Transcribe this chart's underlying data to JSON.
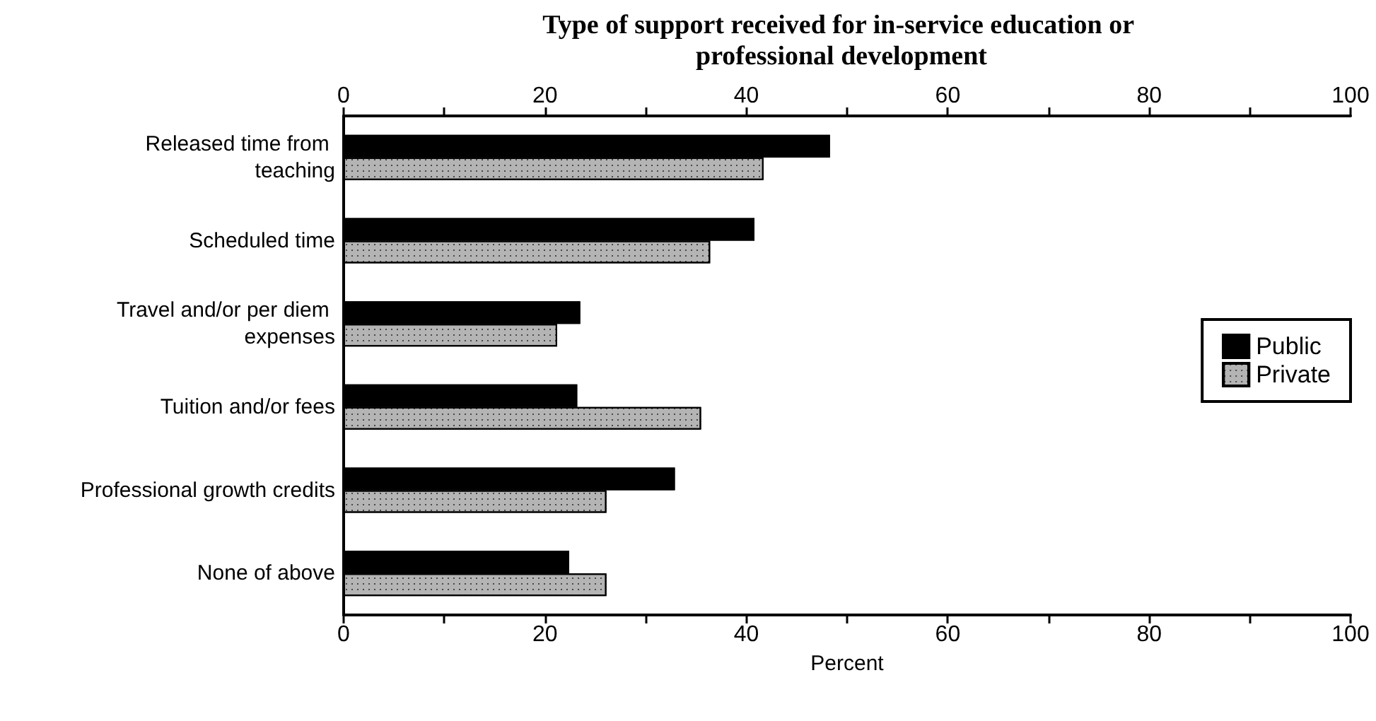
{
  "chart_data": {
    "type": "bar",
    "orientation": "horizontal",
    "title": "Type of support received for in-service education or professional development",
    "xlabel": "Percent",
    "categories": [
      "Released time from teaching",
      "Scheduled time",
      "Travel and/or per diem expenses",
      "Tuition and/or fees",
      "Professional growth credits",
      "None of above"
    ],
    "series": [
      {
        "name": "Public",
        "color": "#000000",
        "values": [
          48.3,
          40.8,
          23.5,
          23.2,
          32.9,
          22.4
        ]
      },
      {
        "name": "Private",
        "color": "#b4b4b4",
        "values": [
          41.7,
          36.4,
          21.2,
          35.5,
          26.1,
          26.1
        ]
      }
    ],
    "xlim": [
      0,
      100
    ],
    "xticks": [
      0,
      {
        "value": 10,
        "label": null
      },
      20,
      {
        "value": 30,
        "label": null
      },
      40,
      {
        "value": 50,
        "label": null
      },
      60,
      {
        "value": 70,
        "label": null
      },
      80,
      {
        "value": 90,
        "label": null
      },
      100
    ],
    "x2lim": [
      0,
      100
    ],
    "x2ticks": [
      0,
      {
        "value": 10,
        "label": null
      },
      20,
      {
        "value": 30,
        "label": null
      },
      40,
      {
        "value": 50,
        "label": null
      },
      60,
      {
        "value": 70,
        "label": null
      },
      80,
      {
        "value": 90,
        "label": null
      },
      100
    ],
    "legend": "right",
    "grid": false
  }
}
